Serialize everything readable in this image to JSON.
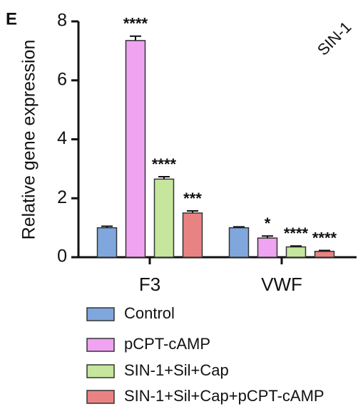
{
  "chart_data": {
    "type": "bar",
    "panel": "E",
    "annotation": "SIN-1",
    "ylabel": "Relative gene expression",
    "categories": [
      "F3",
      "VWF"
    ],
    "ylim": [
      0,
      8
    ],
    "yticks": [
      0,
      2,
      4,
      6,
      8
    ],
    "series": [
      {
        "name": "Control",
        "color": "#7fa7dd",
        "values": [
          1.0,
          1.0
        ],
        "errors": [
          0.05,
          0.03
        ],
        "labels": [
          null,
          null
        ]
      },
      {
        "name": "pCPT-cAMP",
        "color": "#f0a3f0",
        "values": [
          7.35,
          0.65
        ],
        "errors": [
          0.15,
          0.07
        ],
        "labels": [
          "****",
          "*"
        ]
      },
      {
        "name": "SIN-1+Sil+Cap",
        "color": "#c5e69c",
        "values": [
          2.65,
          0.35
        ],
        "errors": [
          0.08,
          0.03
        ],
        "labels": [
          "****",
          "****"
        ]
      },
      {
        "name": "SIN-1+Sil+Cap+pCPT-cAMP",
        "color": "#e98383",
        "values": [
          1.5,
          0.2
        ],
        "errors": [
          0.07,
          0.03
        ],
        "labels": [
          "***",
          "****"
        ]
      }
    ]
  }
}
